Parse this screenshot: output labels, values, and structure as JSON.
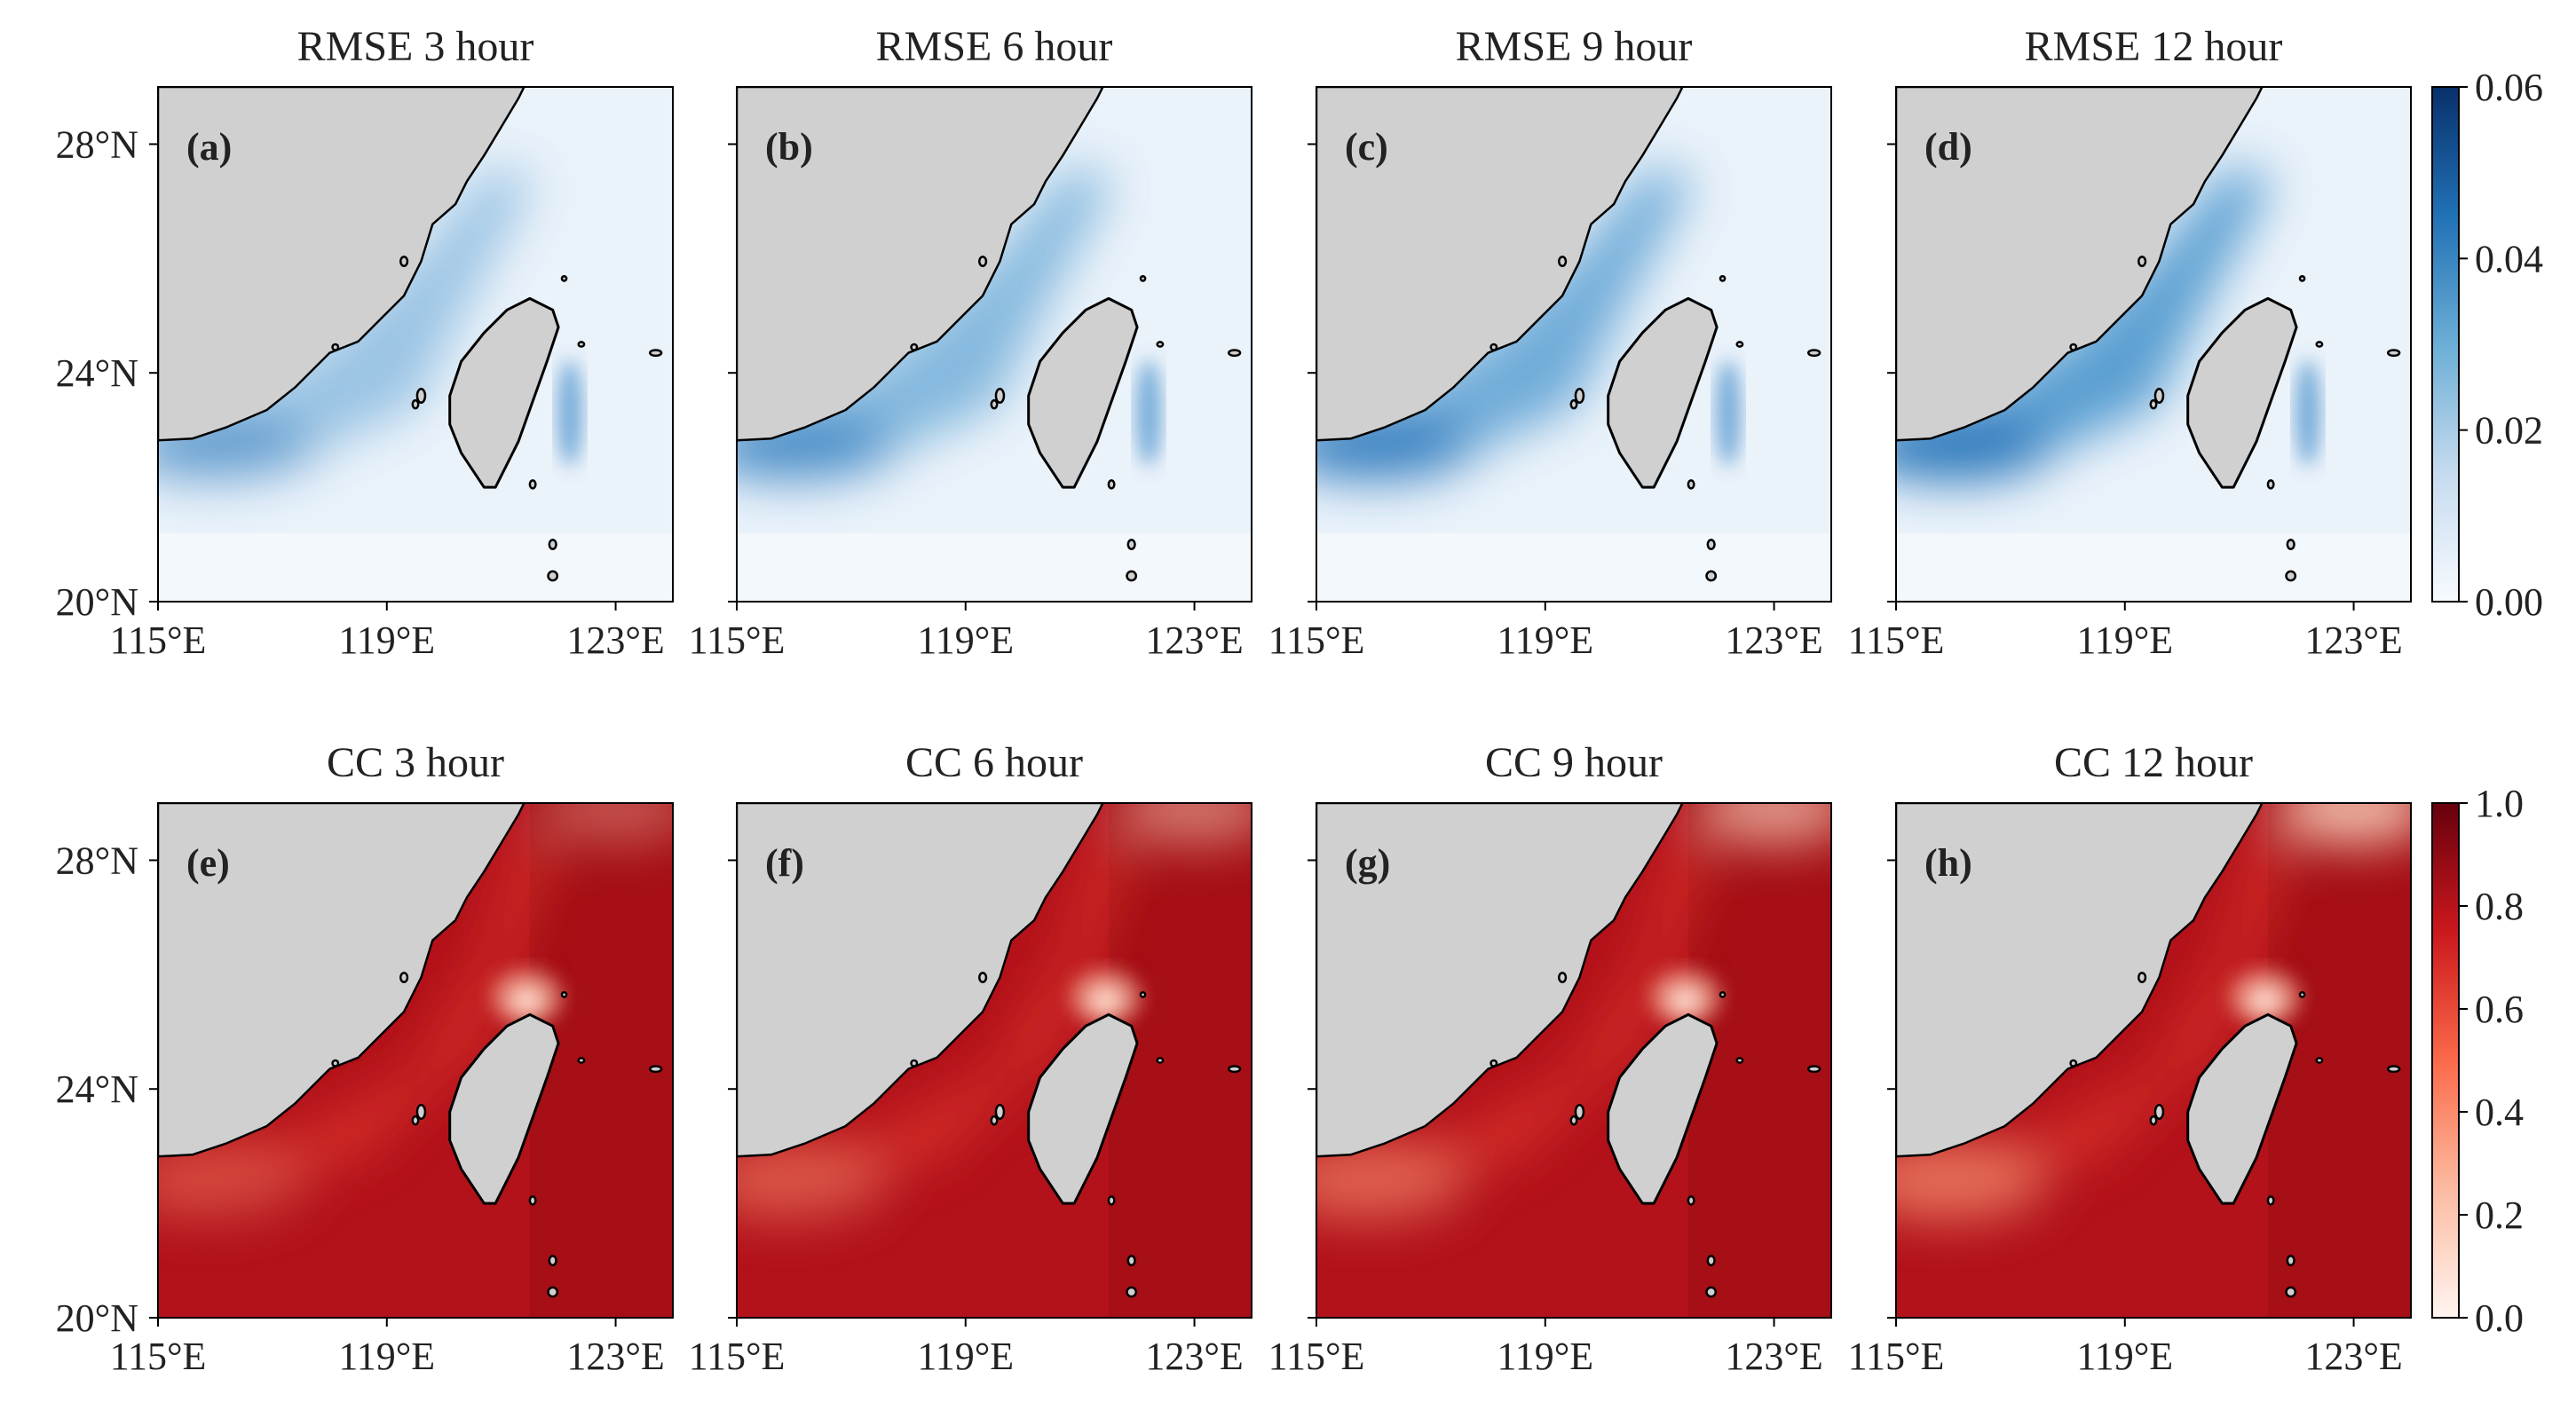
{
  "chart_data": {
    "type": "heatmap",
    "x_ticks": [
      "115°E",
      "119°E",
      "123°E"
    ],
    "y_ticks": [
      "20°N",
      "24°N",
      "28°N"
    ],
    "x_range": [
      115,
      124
    ],
    "y_range": [
      20,
      29
    ],
    "panels": [
      {
        "row": "rmse",
        "title": "RMSE 3 hour",
        "label": "(a)"
      },
      {
        "row": "rmse",
        "title": "RMSE 6 hour",
        "label": "(b)"
      },
      {
        "row": "rmse",
        "title": "RMSE 9 hour",
        "label": "(c)"
      },
      {
        "row": "rmse",
        "title": "RMSE 12 hour",
        "label": "(d)"
      },
      {
        "row": "cc",
        "title": "CC 3 hour",
        "label": "(e)"
      },
      {
        "row": "cc",
        "title": "CC 6 hour",
        "label": "(f)"
      },
      {
        "row": "cc",
        "title": "CC 9 hour",
        "label": "(g)"
      },
      {
        "row": "cc",
        "title": "CC 12 hour",
        "label": "(h)"
      }
    ],
    "colorbars": {
      "rmse": {
        "ticks": [
          "0.00",
          "0.02",
          "0.04",
          "0.06"
        ],
        "range": [
          0,
          0.06
        ],
        "colors": [
          "#f7fbff",
          "#c6dbef",
          "#6baed6",
          "#2171b5",
          "#08306b"
        ]
      },
      "cc": {
        "ticks": [
          "0.0",
          "0.2",
          "0.4",
          "0.6",
          "0.8",
          "1.0"
        ],
        "range": [
          0,
          1
        ],
        "colors": [
          "#fff5f0",
          "#fcbba1",
          "#fb6a4a",
          "#cb181d",
          "#67000d"
        ]
      }
    },
    "land_color": "#d0d0d0",
    "coast_color": "#000000"
  }
}
